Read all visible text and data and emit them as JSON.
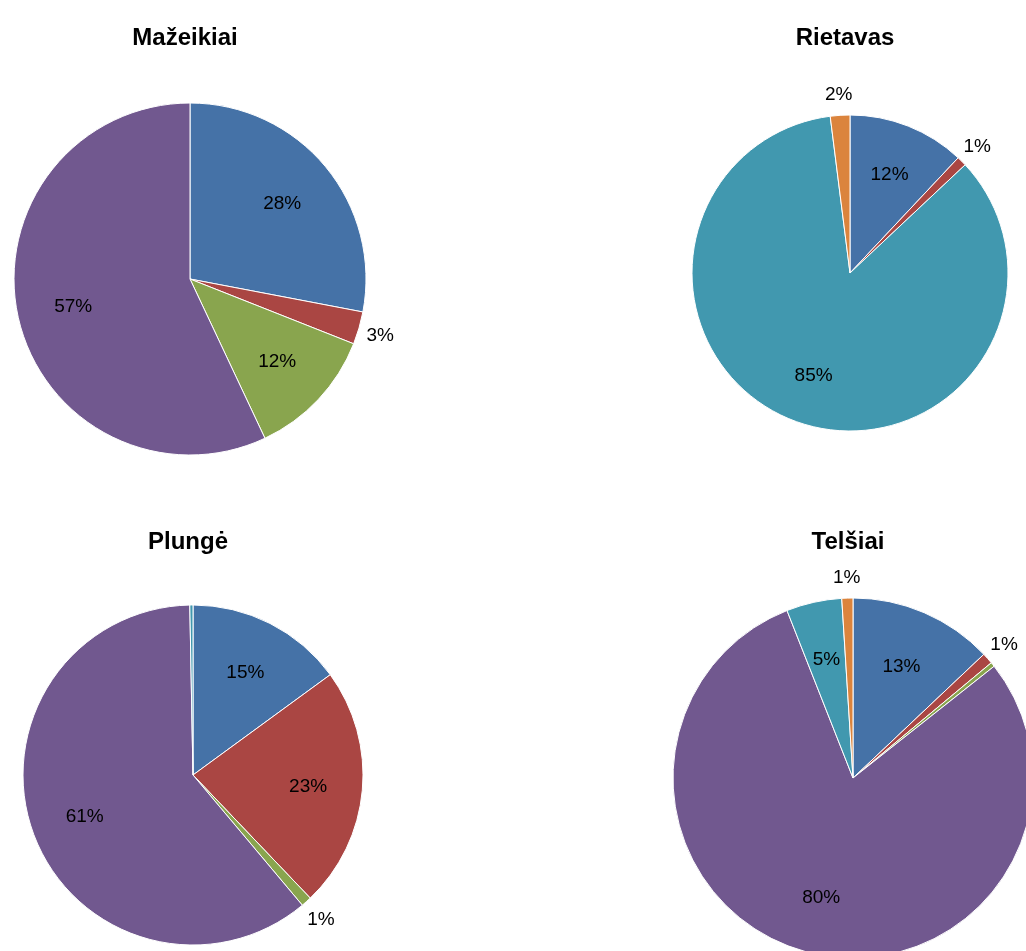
{
  "chart_data": [
    {
      "type": "pie",
      "title": "Mažeikiai",
      "categories": [
        null,
        null,
        null,
        null
      ],
      "values": [
        28,
        3,
        12,
        57
      ],
      "colors": [
        "#4572a7",
        "#aa4643",
        "#89a54e",
        "#71588f"
      ],
      "value_labels": [
        "28%",
        "3%",
        "12%",
        "57%"
      ]
    },
    {
      "type": "pie",
      "title": "Rietavas",
      "categories": [
        null,
        null,
        null,
        null
      ],
      "values": [
        12,
        1,
        85,
        2
      ],
      "colors": [
        "#4572a7",
        "#aa4643",
        "#4198af",
        "#db843d"
      ],
      "value_labels": [
        "12%",
        "1%",
        "85%",
        "2%"
      ]
    },
    {
      "type": "pie",
      "title": "Plungė",
      "categories": [
        null,
        null,
        null,
        null,
        null
      ],
      "values": [
        15,
        23,
        1,
        61,
        0.3
      ],
      "colors": [
        "#4572a7",
        "#aa4643",
        "#89a54e",
        "#71588f",
        "#4198af"
      ],
      "value_labels": [
        "15%",
        "23%",
        "1%",
        "61%",
        null
      ]
    },
    {
      "type": "pie",
      "title": "Telšiai",
      "categories": [
        null,
        null,
        null,
        null,
        null,
        null
      ],
      "values": [
        13,
        1,
        0.4,
        80,
        5,
        1
      ],
      "colors": [
        "#4572a7",
        "#aa4643",
        "#89a54e",
        "#71588f",
        "#4198af",
        "#db843d"
      ],
      "value_labels": [
        "13%",
        "1%",
        null,
        "80%",
        "5%",
        "1%"
      ]
    }
  ]
}
